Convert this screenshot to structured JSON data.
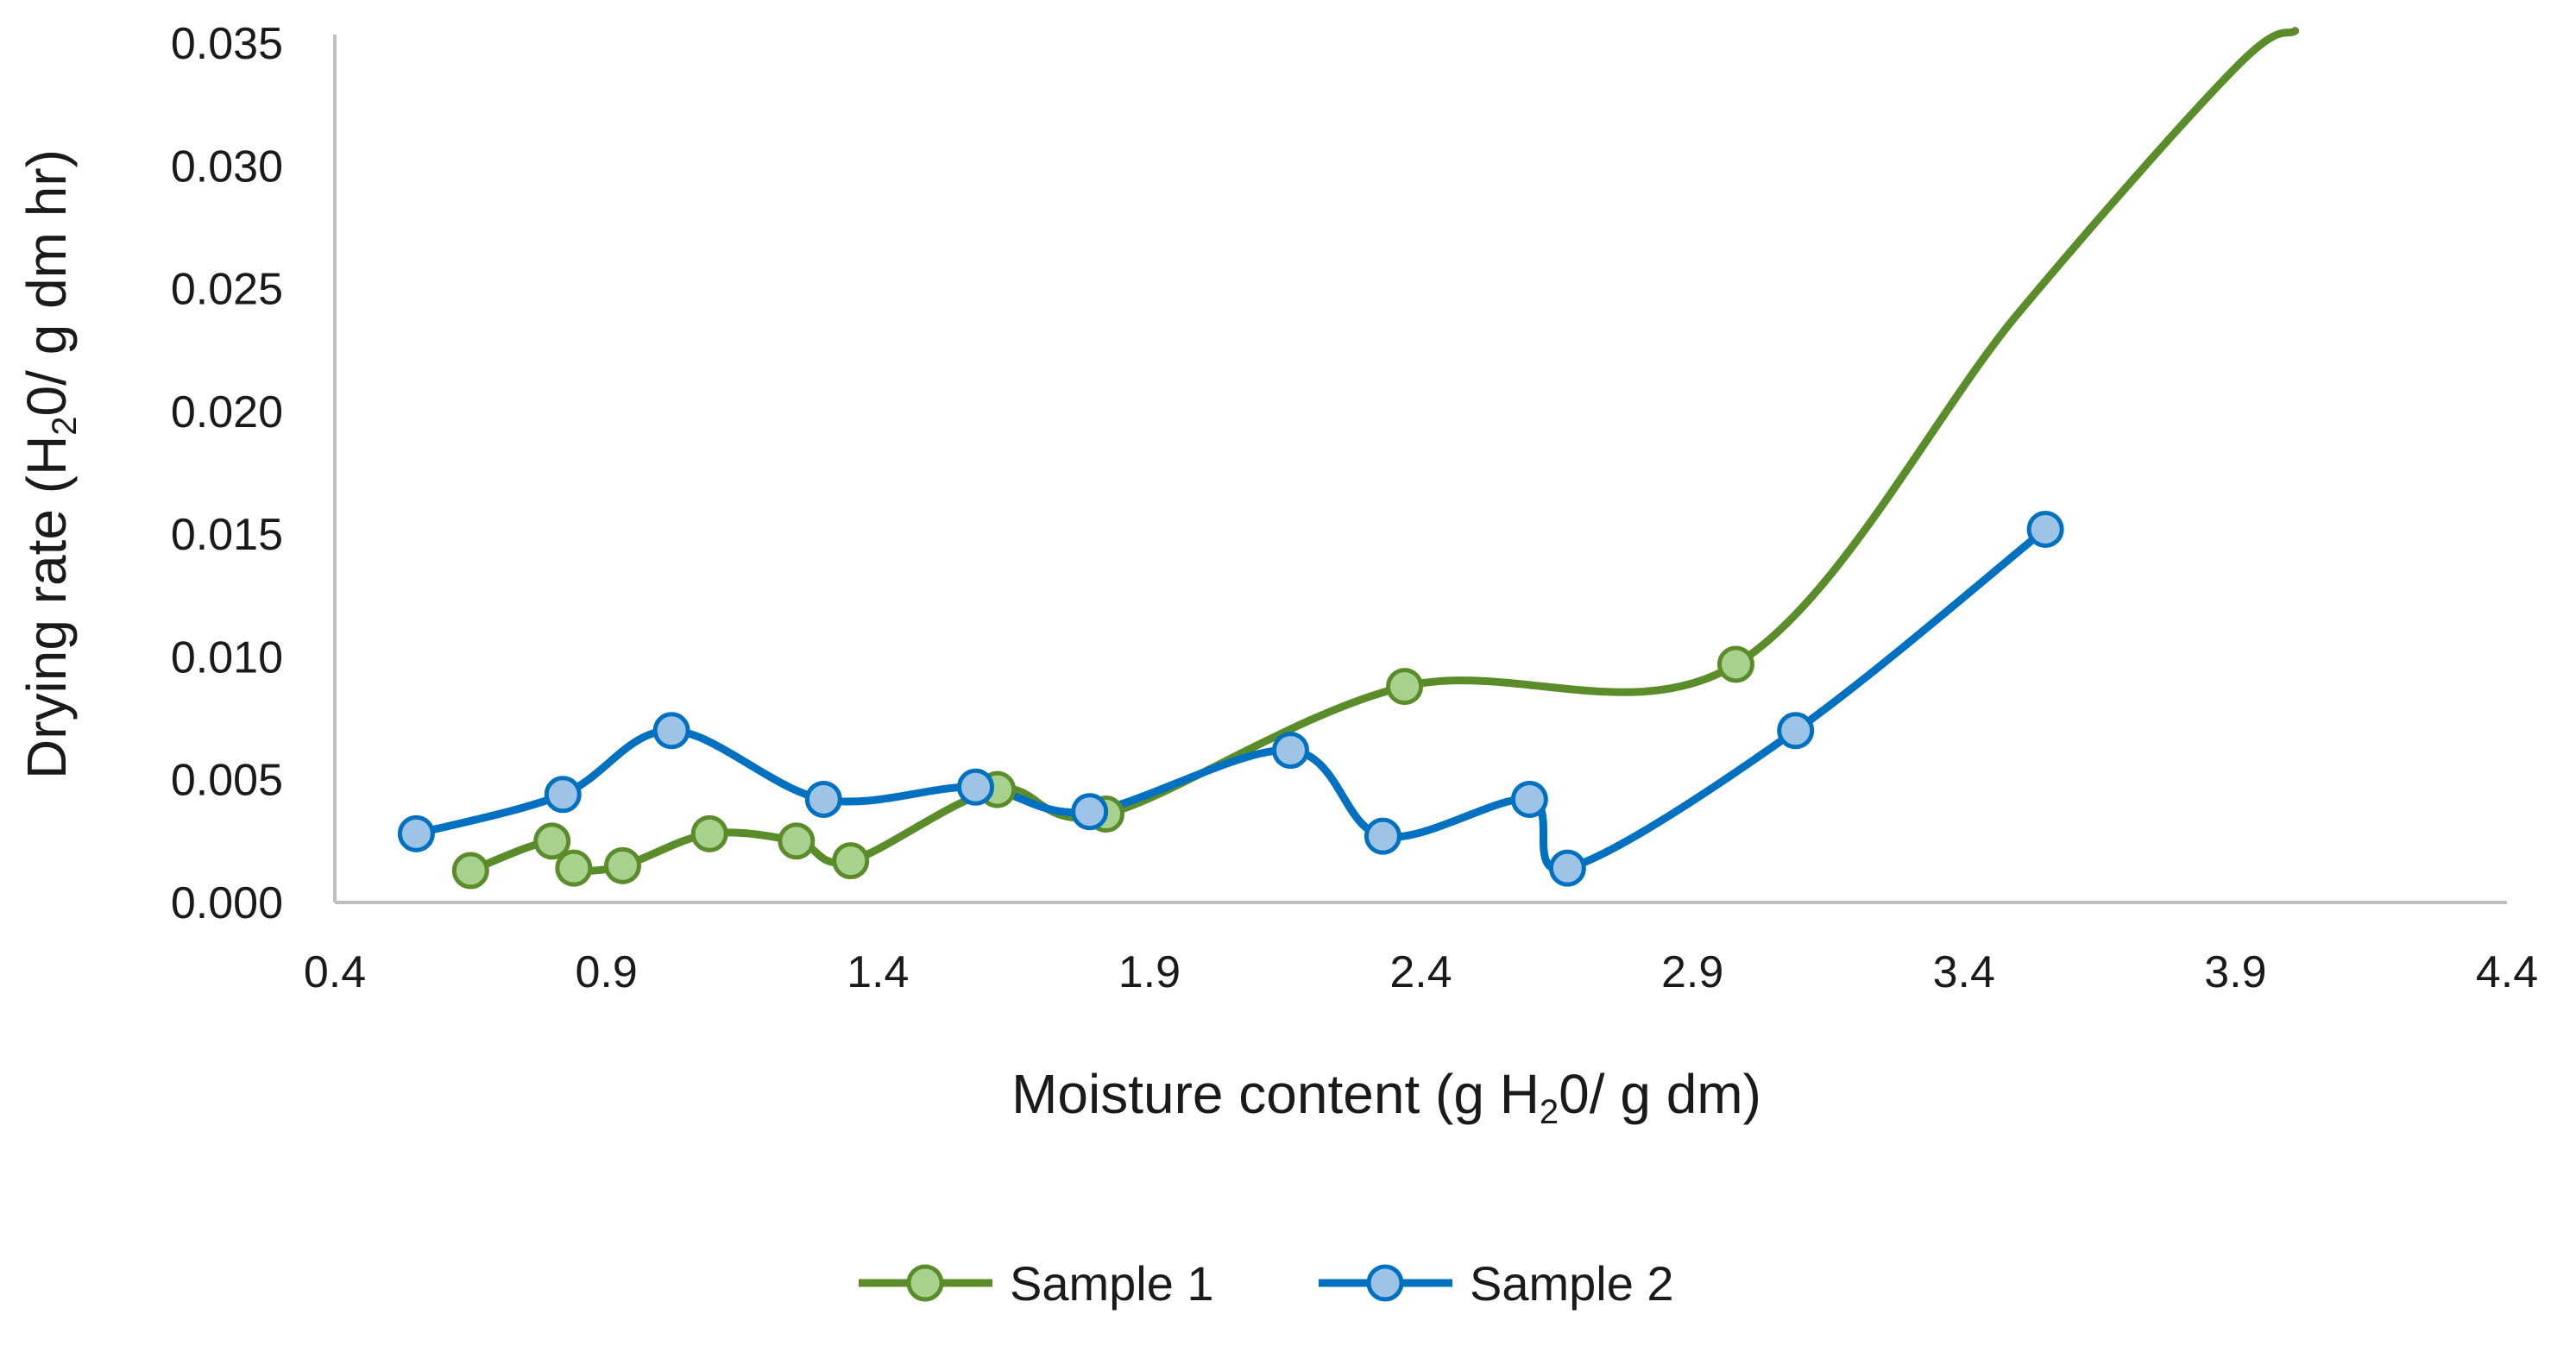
{
  "chart_data": {
    "type": "scatter",
    "xlabel": {
      "pre": "Moisture content (g H",
      "sub": "2",
      "post": "0/ g dm)"
    },
    "ylabel": {
      "pre": "Drying rate (H",
      "sub": "2",
      "post": "0/ g dm hr)"
    },
    "xlim": [
      0.4,
      4.4
    ],
    "ylim": [
      0.0,
      0.035
    ],
    "x_ticks": [
      "0.4",
      "0.9",
      "1.4",
      "1.9",
      "2.4",
      "2.9",
      "3.4",
      "3.9",
      "4.4"
    ],
    "y_ticks": [
      "0.000",
      "0.005",
      "0.010",
      "0.015",
      "0.020",
      "0.025",
      "0.030",
      "0.035"
    ],
    "grid": false,
    "legend_position": "bottom",
    "series": [
      {
        "name": "Sample 1",
        "line_color": "#5b8c2a",
        "marker_fill": "#a9d18e",
        "marker_edge": "#5b8c2a",
        "points": [
          [
            0.65,
            0.0013
          ],
          [
            0.8,
            0.0025
          ],
          [
            0.84,
            0.0014
          ],
          [
            0.93,
            0.0015
          ],
          [
            1.09,
            0.0028
          ],
          [
            1.25,
            0.0025
          ],
          [
            1.35,
            0.0017
          ],
          [
            1.62,
            0.0046
          ],
          [
            1.82,
            0.0036
          ],
          [
            2.37,
            0.0088
          ],
          [
            2.98,
            0.0097
          ]
        ],
        "curve_extension": [
          [
            3.5,
            0.024
          ],
          [
            3.9,
            0.034
          ],
          [
            4.01,
            0.0355
          ]
        ]
      },
      {
        "name": "Sample 2",
        "line_color": "#0070c0",
        "marker_fill": "#9dc3e6",
        "marker_edge": "#0070c0",
        "points": [
          [
            0.55,
            0.0028
          ],
          [
            0.82,
            0.0044
          ],
          [
            1.02,
            0.007
          ],
          [
            1.3,
            0.0042
          ],
          [
            1.58,
            0.0047
          ],
          [
            1.79,
            0.0037
          ],
          [
            2.16,
            0.0062
          ],
          [
            2.33,
            0.0027
          ],
          [
            2.6,
            0.0042
          ],
          [
            2.67,
            0.0014
          ],
          [
            3.09,
            0.007
          ],
          [
            3.55,
            0.0152
          ]
        ],
        "curve_extension": []
      }
    ]
  }
}
